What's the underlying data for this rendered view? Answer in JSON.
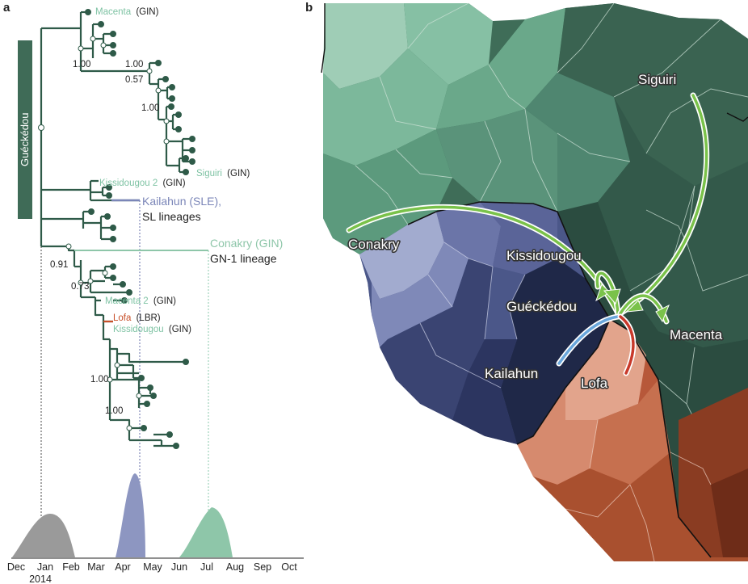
{
  "panels": {
    "a": "a",
    "b": "b"
  },
  "tree": {
    "clade_label": "Guéckédou",
    "tips": {
      "macenta": "Macenta",
      "siguiri": "Siguiri",
      "kissidougou2": "Kissidougou 2",
      "macenta2": "Macenta 2",
      "lofa": "Lofa",
      "kissidougou": "Kissidougou"
    },
    "country_gin": "(GIN)",
    "country_lbr": "(LBR)",
    "supports": [
      "1.00",
      "1.00",
      "0.57",
      "1.00",
      "0.91",
      "0.73",
      "1.00",
      "1.00"
    ],
    "lineages": {
      "kailahun_main": "Kailahun (SLE),",
      "kailahun_sub": "SL lineages",
      "conakry_main": "Conakry (GIN)",
      "conakry_sub": "GN-1 lineage"
    },
    "colors": {
      "branch": "#2e5a48",
      "guinea_tip": "#7fc3a4",
      "sl_lineage": "#7b86b8",
      "lofa": "#c8502a",
      "clade_box": "#3f6b57"
    }
  },
  "timeline": {
    "months": [
      "Dec",
      "Jan",
      "Feb",
      "Mar",
      "Apr",
      "May",
      "Jun",
      "Jul",
      "Aug",
      "Sep",
      "Oct"
    ],
    "year": "2014",
    "density_colors": [
      "#9a9a9a",
      "#8d96c1",
      "#8ec6a9"
    ]
  },
  "map": {
    "labels": {
      "siguiri": "Siguiri",
      "conakry": "Conakry",
      "kissidougou": "Kissidougou",
      "gueckedou": "Guéckédou",
      "macenta": "Macenta",
      "kailahun": "Kailahun",
      "lofa": "Lofa"
    },
    "colors": {
      "guinea": "#3f6b57",
      "sierra_leone": "#4e5a8c",
      "liberia": "#c4694a",
      "arrow_guinea": "#7ac24a",
      "arrow_sl": "#6aa7dc",
      "arrow_lofa": "#c8392a"
    }
  }
}
